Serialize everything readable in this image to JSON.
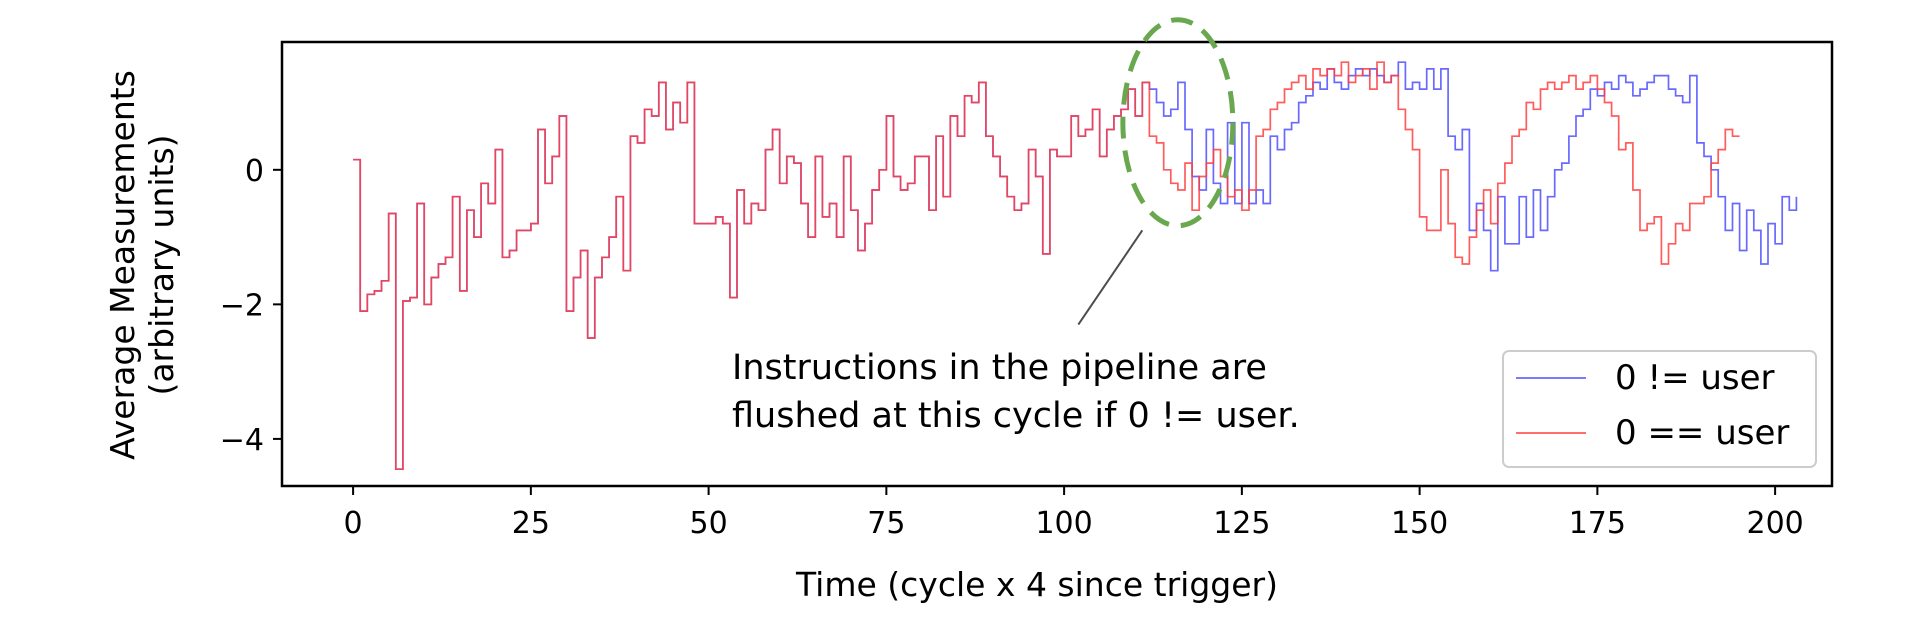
{
  "chart_data": {
    "type": "line",
    "drawstyle": "steps-post",
    "xlabel": "Time (cycle x 4 since trigger)",
    "ylabel_line1": "Average Measurements",
    "ylabel_line2": "(arbitrary units)",
    "xlim": [
      -10,
      208
    ],
    "ylim": [
      -4.7,
      1.9
    ],
    "xticks": [
      0,
      25,
      50,
      75,
      100,
      125,
      150,
      175,
      200
    ],
    "yticks": [
      -4,
      -2,
      0
    ],
    "xtick_labels": [
      "0",
      "25",
      "50",
      "75",
      "100",
      "125",
      "150",
      "175",
      "200"
    ],
    "ytick_labels": [
      "−4",
      "−2",
      "0"
    ],
    "grid": false,
    "legend_position": "lower-right",
    "annotation": {
      "line1": "Instructions in the pipeline are",
      "line2": "flushed at this cycle if 0 != user.",
      "highlight_center": [
        116,
        0.7
      ],
      "arrow_from": [
        102,
        -2.3
      ],
      "arrow_to": [
        111,
        -0.9
      ]
    },
    "series": [
      {
        "name": "0 != user",
        "color": "#4f4fff",
        "values": [
          0.15,
          -2.1,
          -1.85,
          -1.8,
          -1.65,
          -0.65,
          -4.45,
          -1.95,
          -1.9,
          -0.5,
          -2.0,
          -1.6,
          -1.4,
          -1.3,
          -0.4,
          -1.8,
          -0.6,
          -1.0,
          -0.2,
          -0.5,
          0.3,
          -1.3,
          -1.2,
          -0.9,
          -0.9,
          -0.8,
          0.6,
          -0.2,
          0.2,
          0.8,
          -2.1,
          -1.6,
          -1.2,
          -2.5,
          -1.6,
          -1.3,
          -1.0,
          -0.4,
          -1.5,
          0.5,
          0.4,
          0.9,
          0.8,
          1.3,
          0.6,
          1.0,
          0.7,
          1.3,
          -0.8,
          -0.8,
          -0.8,
          -0.7,
          -0.8,
          -1.9,
          -0.3,
          -0.8,
          -0.5,
          -0.6,
          0.3,
          0.6,
          -0.2,
          0.2,
          0.1,
          -0.5,
          -1.0,
          0.2,
          -0.7,
          -0.5,
          -1.0,
          0.2,
          -0.6,
          -1.2,
          -0.8,
          -0.3,
          0.0,
          0.8,
          -0.1,
          -0.3,
          -0.2,
          0.2,
          0.2,
          -0.6,
          0.5,
          -0.4,
          0.8,
          0.5,
          1.1,
          1.0,
          1.3,
          0.5,
          0.2,
          -0.1,
          -0.4,
          -0.6,
          -0.5,
          0.3,
          -0.1,
          -1.25,
          0.3,
          0.2,
          0.2,
          0.8,
          0.5,
          0.6,
          0.9,
          0.2,
          0.6,
          0.8,
          0.9,
          1.2,
          0.8,
          1.3,
          1.2,
          1.0,
          0.8,
          0.9,
          1.3,
          0.6,
          -0.1,
          -0.3,
          0.6,
          -0.2,
          -0.5,
          0.7,
          -0.5,
          0.7,
          -0.5,
          -0.3,
          -0.5,
          0.5,
          0.3,
          0.6,
          0.7,
          1.0,
          1.1,
          1.3,
          1.2,
          1.5,
          1.3,
          1.2,
          1.4,
          1.5,
          1.4,
          1.5,
          1.4,
          1.3,
          1.4,
          1.6,
          1.2,
          1.3,
          1.2,
          1.5,
          1.2,
          1.5,
          0.5,
          0.3,
          0.6,
          -0.9,
          -0.5,
          -0.9,
          -1.5,
          -0.4,
          -1.1,
          -1.1,
          -0.4,
          -1.0,
          -0.3,
          -0.9,
          -0.4,
          0.0,
          0.1,
          0.5,
          0.8,
          0.9,
          1.2,
          1.1,
          1.3,
          1.2,
          1.4,
          1.3,
          1.1,
          1.2,
          1.3,
          1.4,
          1.4,
          1.2,
          1.1,
          1.0,
          1.4,
          0.4,
          0.2,
          0.0,
          -0.4,
          -0.9,
          -0.5,
          -1.2,
          -0.6,
          -0.9,
          -1.4,
          -0.8,
          -1.1,
          -0.4,
          -0.6,
          -0.4
        ],
        "x_start": 0,
        "x_step": 1
      },
      {
        "name": "0 == user",
        "color": "#ff3f3f",
        "values": [
          0.15,
          -2.1,
          -1.85,
          -1.8,
          -1.65,
          -0.65,
          -4.45,
          -1.95,
          -1.9,
          -0.5,
          -2.0,
          -1.6,
          -1.4,
          -1.3,
          -0.4,
          -1.8,
          -0.6,
          -1.0,
          -0.2,
          -0.5,
          0.3,
          -1.3,
          -1.2,
          -0.9,
          -0.9,
          -0.8,
          0.6,
          -0.2,
          0.2,
          0.8,
          -2.1,
          -1.6,
          -1.2,
          -2.5,
          -1.6,
          -1.3,
          -1.0,
          -0.4,
          -1.5,
          0.5,
          0.4,
          0.9,
          0.8,
          1.3,
          0.6,
          1.0,
          0.7,
          1.3,
          -0.8,
          -0.8,
          -0.8,
          -0.7,
          -0.8,
          -1.9,
          -0.3,
          -0.8,
          -0.5,
          -0.6,
          0.3,
          0.6,
          -0.2,
          0.2,
          0.1,
          -0.5,
          -1.0,
          0.2,
          -0.7,
          -0.5,
          -1.0,
          0.2,
          -0.6,
          -1.2,
          -0.8,
          -0.3,
          0.0,
          0.8,
          -0.1,
          -0.3,
          -0.2,
          0.2,
          0.2,
          -0.6,
          0.5,
          -0.4,
          0.8,
          0.5,
          1.1,
          1.0,
          1.3,
          0.5,
          0.2,
          -0.1,
          -0.4,
          -0.6,
          -0.5,
          0.3,
          -0.1,
          -1.25,
          0.3,
          0.2,
          0.2,
          0.8,
          0.5,
          0.6,
          0.9,
          0.2,
          0.6,
          0.8,
          0.9,
          1.2,
          0.8,
          1.3,
          0.5,
          0.4,
          0.0,
          -0.2,
          -0.3,
          0.1,
          -0.6,
          -0.1,
          0.1,
          0.3,
          -0.1,
          -0.4,
          -0.3,
          -0.6,
          -0.3,
          0.5,
          0.6,
          0.9,
          1.0,
          1.2,
          1.3,
          1.4,
          1.2,
          1.5,
          1.4,
          1.5,
          1.4,
          1.6,
          1.3,
          1.4,
          1.5,
          1.2,
          1.6,
          1.3,
          1.4,
          0.9,
          0.6,
          0.3,
          -0.7,
          -0.9,
          -0.9,
          0.0,
          -0.8,
          -1.3,
          -1.4,
          -1.0,
          -0.6,
          -0.3,
          -0.8,
          -0.2,
          0.1,
          0.5,
          0.6,
          1.0,
          0.9,
          1.2,
          1.3,
          1.2,
          1.3,
          1.4,
          1.2,
          1.3,
          1.4,
          1.2,
          1.0,
          0.8,
          0.3,
          0.4,
          -0.3,
          -0.9,
          -0.8,
          -0.7,
          -1.4,
          -1.1,
          -0.8,
          -0.9,
          -0.5,
          -0.5,
          -0.4,
          0.1,
          0.3,
          0.6,
          0.5,
          0.5
        ],
        "x_start": 0,
        "x_step": 1
      }
    ]
  }
}
